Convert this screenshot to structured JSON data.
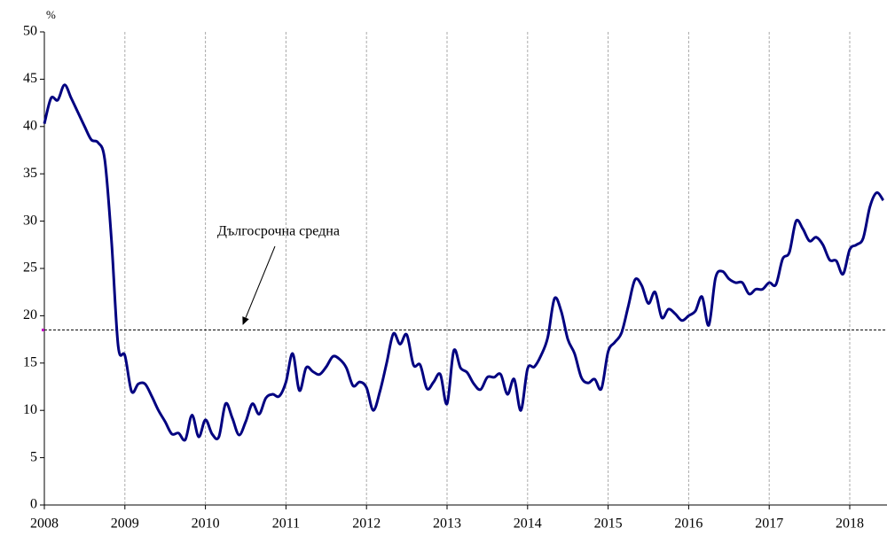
{
  "chart_data": {
    "type": "line",
    "y_axis_label": "%",
    "categories": [
      "2008",
      null,
      null,
      null,
      null,
      null,
      null,
      null,
      null,
      null,
      null,
      null,
      "2009",
      null,
      null,
      null,
      null,
      null,
      null,
      null,
      null,
      null,
      null,
      null,
      "2010",
      null,
      null,
      null,
      null,
      null,
      null,
      null,
      null,
      null,
      null,
      null,
      "2011",
      null,
      null,
      null,
      null,
      null,
      null,
      null,
      null,
      null,
      null,
      null,
      "2012",
      null,
      null,
      null,
      null,
      null,
      null,
      null,
      null,
      null,
      null,
      null,
      "2013",
      null,
      null,
      null,
      null,
      null,
      null,
      null,
      null,
      null,
      null,
      null,
      "2014",
      null,
      null,
      null,
      null,
      null,
      null,
      null,
      null,
      null,
      null,
      null,
      "2015",
      null,
      null,
      null,
      null,
      null,
      null,
      null,
      null,
      null,
      null,
      null,
      "2016",
      null,
      null,
      null,
      null,
      null,
      null,
      null,
      null,
      null,
      null,
      null,
      "2017",
      null,
      null,
      null,
      null,
      null,
      null,
      null,
      null,
      null,
      null,
      null,
      "2018",
      null,
      null,
      null,
      null,
      null
    ],
    "series": [
      {
        "color": "#000080",
        "values": [
          40.3,
          43,
          42.8,
          44.4,
          43,
          41.5,
          40,
          38.6,
          38.3,
          36.5,
          28,
          16.8,
          15.8,
          12,
          12.8,
          12.8,
          11.5,
          10,
          8.8,
          7.5,
          7.6,
          6.9,
          9.5,
          7.2,
          9,
          7.5,
          7.2,
          10.7,
          9.2,
          7.4,
          8.8,
          10.7,
          9.6,
          11.3,
          11.7,
          11.5,
          13,
          16,
          12.1,
          14.5,
          14.1,
          13.8,
          14.6,
          15.7,
          15.4,
          14.5,
          12.6,
          13,
          12.4,
          10,
          12,
          15,
          18.1,
          17,
          18,
          14.8,
          14.8,
          12.3,
          13,
          13.8,
          10.7,
          16.3,
          14.5,
          14,
          12.8,
          12.2,
          13.5,
          13.5,
          13.8,
          11.7,
          13.3,
          10,
          14.4,
          14.6,
          15.8,
          17.7,
          21.8,
          20.5,
          17.5,
          16,
          13.5,
          12.9,
          13.3,
          12.3,
          16.2,
          17.2,
          18.2,
          21,
          23.8,
          23.2,
          21.3,
          22.5,
          19.8,
          20.7,
          20.2,
          19.5,
          20,
          20.5,
          22,
          19,
          24,
          24.7,
          23.9,
          23.5,
          23.5,
          22.3,
          22.8,
          22.8,
          23.5,
          23.3,
          26,
          26.7,
          30,
          29.2,
          27.9,
          28.3,
          27.5,
          25.9,
          25.8,
          24.4,
          27,
          27.5,
          28.2,
          31.5,
          33,
          32.2
        ]
      }
    ],
    "reference_line": {
      "label": "Дългосрочна средна",
      "value": 18.5,
      "color": "#000000"
    },
    "ylim": [
      0,
      50
    ],
    "yticks": [
      0,
      5,
      10,
      15,
      20,
      25,
      30,
      35,
      40,
      45,
      50
    ],
    "grid": true
  }
}
